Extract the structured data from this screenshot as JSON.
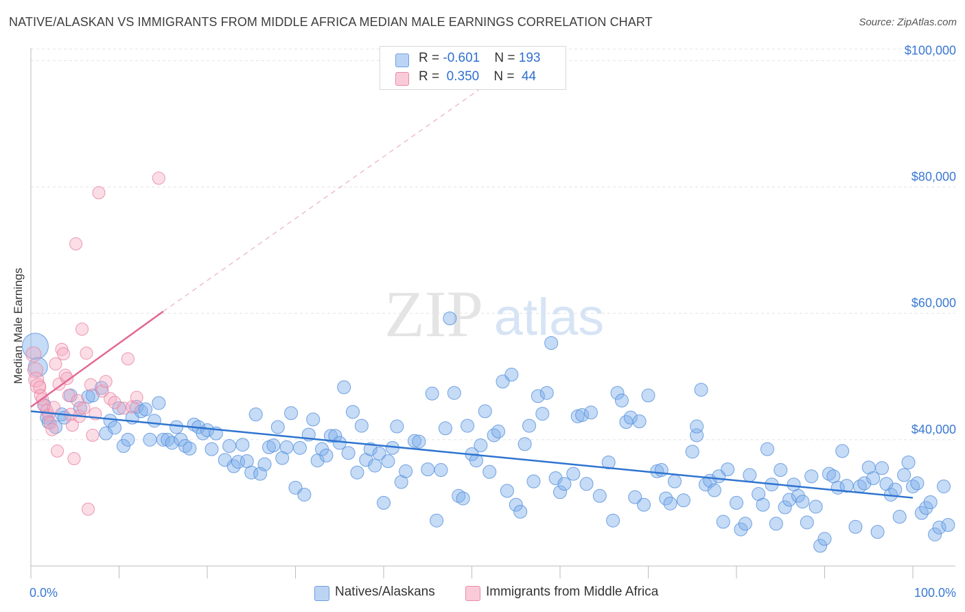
{
  "title": "NATIVE/ALASKAN VS IMMIGRANTS FROM MIDDLE AFRICA MEDIAN MALE EARNINGS CORRELATION CHART",
  "source": "Source: ZipAtlas.com",
  "watermark": {
    "zip": "ZIP",
    "atlas": "atlas"
  },
  "legend_top": [
    {
      "r_label": "R = ",
      "r_value": "-0.601",
      "n_label": "N = ",
      "n_value": "193",
      "color": "#a9c8f0"
    },
    {
      "r_label": "R = ",
      "r_value": "0.350",
      "n_label": "N = ",
      "n_value": "44",
      "color": "#f6b8cb"
    }
  ],
  "legend_bottom": [
    {
      "name": "Natives/Alaskans",
      "color": "#a9c8f0"
    },
    {
      "name": "Immigrants from Middle Africa",
      "color": "#f6b8cb"
    }
  ],
  "chart_data": {
    "type": "scatter",
    "title": "NATIVE/ALASKAN VS IMMIGRANTS FROM MIDDLE AFRICA MEDIAN MALE EARNINGS CORRELATION CHART",
    "xlabel": "",
    "ylabel": "Median Male Earnings",
    "xlim": [
      0,
      100
    ],
    "ylim": [
      20000,
      102000
    ],
    "x_tick_labels": [
      "0.0%",
      "100.0%"
    ],
    "y_ticks": [
      40000,
      60000,
      80000,
      100000
    ],
    "y_tick_labels": [
      "$40,000",
      "$60,000",
      "$80,000",
      "$100,000"
    ],
    "grid": true,
    "series": [
      {
        "name": "Natives/Alaskans",
        "color": "#7fb0ea",
        "stroke": "#5b93dc",
        "trend": {
          "x": [
            0,
            100
          ],
          "y": [
            44500,
            30800
          ],
          "color": "#2e74d0"
        },
        "points": [
          [
            0.5,
            54800
          ],
          [
            0.8,
            51500
          ],
          [
            1.5,
            45500
          ],
          [
            1.8,
            43500
          ],
          [
            2.0,
            42800
          ],
          [
            2.8,
            42000
          ],
          [
            3.5,
            44000
          ],
          [
            3.8,
            43500
          ],
          [
            4.5,
            47000
          ],
          [
            5.6,
            45000
          ],
          [
            6.5,
            46800
          ],
          [
            7.0,
            47000
          ],
          [
            8.0,
            48200
          ],
          [
            8.5,
            41000
          ],
          [
            9.0,
            43000
          ],
          [
            9.5,
            41900
          ],
          [
            10.0,
            45000
          ],
          [
            10.5,
            39000
          ],
          [
            11.0,
            40000
          ],
          [
            11.5,
            43500
          ],
          [
            12.0,
            45200
          ],
          [
            12.5,
            44500
          ],
          [
            13.0,
            44800
          ],
          [
            13.5,
            40000
          ],
          [
            14.0,
            43000
          ],
          [
            14.5,
            45800
          ],
          [
            15.0,
            40000
          ],
          [
            15.5,
            40000
          ],
          [
            16.0,
            39500
          ],
          [
            16.5,
            42000
          ],
          [
            17.0,
            40000
          ],
          [
            17.5,
            39000
          ],
          [
            18.0,
            38600
          ],
          [
            18.5,
            42400
          ],
          [
            19.0,
            42000
          ],
          [
            19.5,
            41000
          ],
          [
            20.0,
            41500
          ],
          [
            20.5,
            38500
          ],
          [
            21.0,
            41000
          ],
          [
            22.0,
            36800
          ],
          [
            22.5,
            39000
          ],
          [
            23.0,
            35800
          ],
          [
            23.5,
            36500
          ],
          [
            24.0,
            39200
          ],
          [
            24.5,
            36600
          ],
          [
            25.0,
            34800
          ],
          [
            25.5,
            44000
          ],
          [
            26.0,
            34600
          ],
          [
            26.5,
            36100
          ],
          [
            27.0,
            38800
          ],
          [
            27.5,
            39100
          ],
          [
            28.0,
            42000
          ],
          [
            28.5,
            37100
          ],
          [
            29.0,
            38800
          ],
          [
            29.5,
            44200
          ],
          [
            30.0,
            32400
          ],
          [
            30.5,
            38700
          ],
          [
            31.0,
            31300
          ],
          [
            31.5,
            40800
          ],
          [
            32.0,
            43200
          ],
          [
            32.5,
            36700
          ],
          [
            33.0,
            38500
          ],
          [
            33.5,
            37500
          ],
          [
            34.0,
            40600
          ],
          [
            34.5,
            40600
          ],
          [
            35.0,
            39500
          ],
          [
            35.5,
            48300
          ],
          [
            36.0,
            37900
          ],
          [
            36.5,
            44400
          ],
          [
            37.0,
            34800
          ],
          [
            37.5,
            42200
          ],
          [
            38.0,
            36800
          ],
          [
            38.5,
            38500
          ],
          [
            39.0,
            35900
          ],
          [
            39.5,
            37800
          ],
          [
            40.0,
            30000
          ],
          [
            40.5,
            36600
          ],
          [
            41.0,
            38700
          ],
          [
            41.5,
            42100
          ],
          [
            42.0,
            33300
          ],
          [
            42.5,
            35000
          ],
          [
            43.5,
            39800
          ],
          [
            44.0,
            39700
          ],
          [
            45.0,
            35300
          ],
          [
            45.5,
            47300
          ],
          [
            46.0,
            27200
          ],
          [
            46.5,
            35200
          ],
          [
            47.0,
            41800
          ],
          [
            47.5,
            59200
          ],
          [
            48.0,
            47400
          ],
          [
            48.5,
            31100
          ],
          [
            49.0,
            30700
          ],
          [
            49.5,
            42200
          ],
          [
            50.0,
            37700
          ],
          [
            50.5,
            36700
          ],
          [
            51.0,
            39100
          ],
          [
            51.5,
            44500
          ],
          [
            52.0,
            34900
          ],
          [
            52.5,
            40700
          ],
          [
            53.0,
            41300
          ],
          [
            53.5,
            49200
          ],
          [
            54.0,
            31900
          ],
          [
            54.5,
            50300
          ],
          [
            55.0,
            29700
          ],
          [
            55.5,
            28600
          ],
          [
            56.0,
            39300
          ],
          [
            56.5,
            42200
          ],
          [
            57.0,
            33400
          ],
          [
            57.5,
            46900
          ],
          [
            58.0,
            44100
          ],
          [
            58.5,
            47400
          ],
          [
            59.0,
            55300
          ],
          [
            59.5,
            33900
          ],
          [
            60.0,
            31700
          ],
          [
            60.5,
            33000
          ],
          [
            61.5,
            34600
          ],
          [
            62.0,
            43700
          ],
          [
            62.5,
            43900
          ],
          [
            63.0,
            33000
          ],
          [
            63.5,
            44300
          ],
          [
            64.5,
            31100
          ],
          [
            65.5,
            36400
          ],
          [
            66.0,
            27200
          ],
          [
            66.5,
            47400
          ],
          [
            67.0,
            46200
          ],
          [
            67.5,
            42800
          ],
          [
            68.0,
            43500
          ],
          [
            68.5,
            30900
          ],
          [
            69.0,
            42900
          ],
          [
            69.5,
            29700
          ],
          [
            70.0,
            47000
          ],
          [
            71.0,
            35000
          ],
          [
            71.5,
            35200
          ],
          [
            72.0,
            30700
          ],
          [
            72.5,
            29900
          ],
          [
            73.0,
            33400
          ],
          [
            74.0,
            30400
          ],
          [
            75.0,
            38100
          ],
          [
            75.5,
            40700
          ],
          [
            75.5,
            42100
          ],
          [
            76.0,
            47900
          ],
          [
            76.5,
            32900
          ],
          [
            77.0,
            33500
          ],
          [
            77.5,
            32000
          ],
          [
            78.0,
            34200
          ],
          [
            78.5,
            27000
          ],
          [
            79.0,
            35300
          ],
          [
            80.0,
            30000
          ],
          [
            80.5,
            25800
          ],
          [
            81.0,
            26700
          ],
          [
            81.5,
            34400
          ],
          [
            82.5,
            31400
          ],
          [
            83.0,
            29700
          ],
          [
            83.5,
            38500
          ],
          [
            84.0,
            32900
          ],
          [
            84.5,
            26700
          ],
          [
            85.0,
            35200
          ],
          [
            85.5,
            29300
          ],
          [
            86.0,
            30500
          ],
          [
            86.5,
            32900
          ],
          [
            87.0,
            31100
          ],
          [
            87.5,
            30200
          ],
          [
            88.0,
            26900
          ],
          [
            88.5,
            34200
          ],
          [
            89.0,
            29400
          ],
          [
            89.5,
            23200
          ],
          [
            90.0,
            24300
          ],
          [
            90.5,
            34600
          ],
          [
            91.0,
            34200
          ],
          [
            91.5,
            32400
          ],
          [
            92.0,
            38200
          ],
          [
            92.5,
            32700
          ],
          [
            93.5,
            26200
          ],
          [
            94.0,
            32600
          ],
          [
            94.5,
            33100
          ],
          [
            95.0,
            35600
          ],
          [
            95.5,
            33900
          ],
          [
            96.0,
            25400
          ],
          [
            96.5,
            35500
          ],
          [
            97.0,
            33000
          ],
          [
            97.5,
            31300
          ],
          [
            98.0,
            32100
          ],
          [
            98.5,
            27800
          ],
          [
            99.0,
            34400
          ],
          [
            99.5,
            36400
          ],
          [
            100.0,
            32600
          ],
          [
            100.5,
            33100
          ],
          [
            101.0,
            28400
          ],
          [
            101.5,
            29200
          ],
          [
            102.0,
            30100
          ],
          [
            102.5,
            25000
          ],
          [
            103.0,
            26100
          ],
          [
            103.5,
            32600
          ],
          [
            104.0,
            26500
          ]
        ]
      },
      {
        "name": "Immigrants from Middle Africa",
        "color": "#f4a9c0",
        "stroke": "#ea86a5",
        "trend": {
          "x": [
            0,
            15
          ],
          "y": [
            45200,
            60300
          ],
          "color": "#e26892",
          "dash_to": [
            56,
            100500
          ]
        },
        "points": [
          [
            0.3,
            53500
          ],
          [
            0.5,
            51000
          ],
          [
            0.6,
            49500
          ],
          [
            0.8,
            48500
          ],
          [
            1.0,
            48300
          ],
          [
            1.1,
            47000
          ],
          [
            1.3,
            46400
          ],
          [
            1.5,
            45400
          ],
          [
            1.8,
            44600
          ],
          [
            2.0,
            43900
          ],
          [
            2.2,
            42600
          ],
          [
            2.4,
            41600
          ],
          [
            2.6,
            45100
          ],
          [
            2.8,
            52000
          ],
          [
            3.0,
            38200
          ],
          [
            3.2,
            48800
          ],
          [
            3.5,
            54300
          ],
          [
            3.7,
            53600
          ],
          [
            3.9,
            50200
          ],
          [
            4.1,
            49700
          ],
          [
            4.3,
            47000
          ],
          [
            4.5,
            44000
          ],
          [
            4.7,
            42300
          ],
          [
            4.9,
            37000
          ],
          [
            5.1,
            71000
          ],
          [
            5.3,
            46200
          ],
          [
            5.5,
            43700
          ],
          [
            5.8,
            57500
          ],
          [
            6.0,
            45000
          ],
          [
            6.3,
            53700
          ],
          [
            6.5,
            29000
          ],
          [
            6.8,
            48700
          ],
          [
            7.0,
            40700
          ],
          [
            7.3,
            44100
          ],
          [
            7.7,
            79100
          ],
          [
            8.1,
            47700
          ],
          [
            8.5,
            49200
          ],
          [
            9.0,
            46500
          ],
          [
            9.5,
            45900
          ],
          [
            10.5,
            45000
          ],
          [
            11.0,
            52800
          ],
          [
            11.5,
            45200
          ],
          [
            12.0,
            46700
          ],
          [
            14.5,
            81400
          ]
        ]
      }
    ]
  }
}
